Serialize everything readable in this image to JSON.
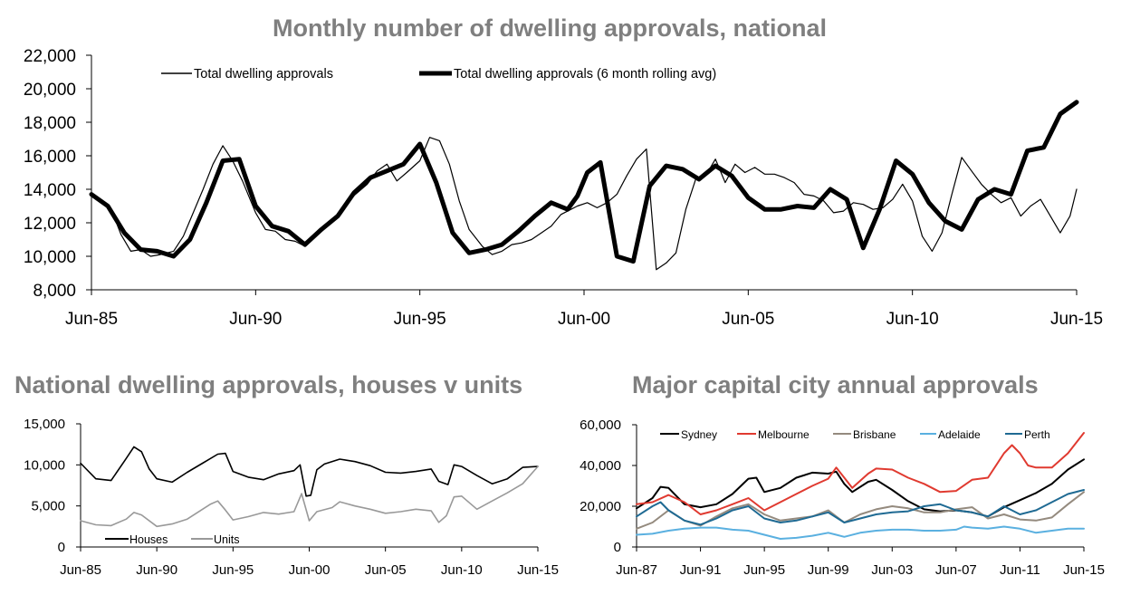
{
  "chart_data": [
    {
      "type": "line",
      "title": "Monthly number of dwelling approvals, national",
      "xlabel": "",
      "ylabel": "",
      "ylim": [
        8000,
        22000
      ],
      "y_ticks": [
        "8,000",
        "10,000",
        "12,000",
        "14,000",
        "16,000",
        "18,000",
        "20,000",
        "22,000"
      ],
      "x_ticks": [
        "Jun-85",
        "Jun-90",
        "Jun-95",
        "Jun-00",
        "Jun-05",
        "Jun-10",
        "Jun-15"
      ],
      "xlim": [
        1985.5,
        2015.5
      ],
      "legend": "top-left",
      "grid": false,
      "series": [
        {
          "name": "Total dwelling approvals",
          "color": "#000000",
          "style": "thin",
          "x": [
            1985.5,
            1985.8,
            1986.1,
            1986.4,
            1986.7,
            1987.0,
            1987.3,
            1987.6,
            1988.0,
            1988.3,
            1988.6,
            1988.9,
            1989.2,
            1989.5,
            1989.8,
            1990.1,
            1990.5,
            1990.8,
            1991.1,
            1991.4,
            1991.7,
            1992.0,
            1992.4,
            1992.7,
            1993.0,
            1993.3,
            1993.6,
            1993.9,
            1994.2,
            1994.5,
            1994.8,
            1995.1,
            1995.5,
            1995.8,
            1996.1,
            1996.4,
            1996.7,
            1997.0,
            1997.4,
            1997.7,
            1998.0,
            1998.3,
            1998.6,
            1998.9,
            1999.2,
            1999.5,
            1999.8,
            2000.1,
            2000.3,
            2000.6,
            2000.9,
            2001.2,
            2001.5,
            2001.8,
            2002.1,
            2002.4,
            2002.7,
            2003.0,
            2003.3,
            2003.6,
            2003.9,
            2004.2,
            2004.5,
            2004.8,
            2005.1,
            2005.4,
            2005.7,
            2006.0,
            2006.3,
            2006.6,
            2006.9,
            2007.2,
            2007.5,
            2007.8,
            2008.1,
            2008.4,
            2008.7,
            2009.0,
            2009.3,
            2009.6,
            2009.9,
            2010.2,
            2010.5,
            2010.8,
            2011.1,
            2011.4,
            2011.7,
            2012.0,
            2012.3,
            2012.6,
            2012.9,
            2013.2,
            2013.5,
            2013.8,
            2014.1,
            2014.4,
            2014.7,
            2015.0,
            2015.3,
            2015.5
          ],
          "values": [
            13700,
            13200,
            12800,
            11300,
            10300,
            10400,
            10000,
            10100,
            10300,
            11200,
            12600,
            14000,
            15500,
            16600,
            15700,
            14500,
            12600,
            11600,
            11500,
            11000,
            10900,
            10600,
            11300,
            12000,
            12300,
            13300,
            13800,
            14300,
            15100,
            15500,
            14500,
            15000,
            15700,
            17100,
            16900,
            15500,
            13300,
            11600,
            10600,
            10100,
            10300,
            10700,
            10800,
            11000,
            11400,
            11800,
            12500,
            12800,
            13000,
            13200,
            12900,
            13200,
            13700,
            14800,
            15800,
            16400,
            9200,
            9600,
            10200,
            12800,
            14600,
            14800,
            15800,
            14400,
            15500,
            15000,
            15300,
            14900,
            14900,
            14700,
            14400,
            13700,
            13600,
            13300,
            12600,
            12700,
            13200,
            13100,
            12800,
            12900,
            13400,
            14300,
            13300,
            11200,
            10300,
            11400,
            13700,
            15900,
            15100,
            14300,
            13700,
            13200,
            13500,
            12400,
            13000,
            13400,
            12400,
            11400,
            12400,
            14000
          ]
        },
        {
          "name": "Total dwelling approvals (6 month rolling avg)",
          "color": "#000000",
          "style": "thick",
          "x": [
            1985.5,
            1986.0,
            1986.5,
            1987.0,
            1987.5,
            1988.0,
            1988.5,
            1989.0,
            1989.5,
            1990.0,
            1990.5,
            1991.0,
            1991.5,
            1992.0,
            1992.5,
            1993.0,
            1993.5,
            1994.0,
            1994.5,
            1995.0,
            1995.5,
            1996.0,
            1996.5,
            1997.0,
            1997.5,
            1998.0,
            1998.5,
            1999.0,
            1999.5,
            2000.0,
            2000.3,
            2000.6,
            2001.0,
            2001.5,
            2002.0,
            2002.5,
            2003.0,
            2003.5,
            2004.0,
            2004.5,
            2005.0,
            2005.5,
            2006.0,
            2006.5,
            2007.0,
            2007.5,
            2008.0,
            2008.5,
            2009.0,
            2009.5,
            2010.0,
            2010.5,
            2011.0,
            2011.5,
            2012.0,
            2012.5,
            2013.0,
            2013.5,
            2014.0,
            2014.5,
            2015.0,
            2015.5
          ],
          "values": [
            13700,
            13000,
            11400,
            10400,
            10300,
            10000,
            11000,
            13200,
            15700,
            15800,
            13000,
            11800,
            11500,
            10700,
            11600,
            12400,
            13800,
            14700,
            15100,
            15500,
            16700,
            14400,
            11400,
            10200,
            10400,
            10700,
            11500,
            12400,
            13200,
            12800,
            13600,
            15000,
            15600,
            10000,
            9700,
            14200,
            15400,
            15200,
            14600,
            15400,
            14800,
            13500,
            12800,
            12800,
            13000,
            12900,
            14000,
            13400,
            10500,
            12800,
            15700,
            14900,
            13200,
            12100,
            11600,
            13400,
            14000,
            13700,
            16300,
            16500,
            18500,
            19200
          ]
        }
      ]
    },
    {
      "type": "line",
      "title": "National dwelling approvals, houses v units",
      "xlabel": "",
      "ylabel": "",
      "ylim": [
        0,
        15000
      ],
      "y_ticks": [
        "0",
        "5,000",
        "10,000",
        "15,000"
      ],
      "x_ticks": [
        "Jun-85",
        "Jun-90",
        "Jun-95",
        "Jun-00",
        "Jun-05",
        "Jun-10",
        "Jun-15"
      ],
      "xlim": [
        1985.5,
        2015.5
      ],
      "legend": "bottom-left",
      "grid": false,
      "series": [
        {
          "name": "Houses",
          "color": "#000000",
          "x": [
            1985.5,
            1986.5,
            1987.5,
            1988.5,
            1989.0,
            1989.5,
            1990.0,
            1990.5,
            1991.5,
            1992.5,
            1993.5,
            1994.5,
            1995.0,
            1995.5,
            1996.5,
            1997.5,
            1998.5,
            1999.5,
            1999.9,
            2000.3,
            2000.6,
            2001.0,
            2001.5,
            2002.5,
            2003.5,
            2004.5,
            2005.5,
            2006.5,
            2007.5,
            2008.5,
            2009.0,
            2009.6,
            2010.0,
            2010.5,
            2011.5,
            2012.5,
            2013.5,
            2014.5,
            2015.5
          ],
          "values": [
            10200,
            8300,
            8100,
            10800,
            12200,
            11600,
            9500,
            8300,
            7900,
            9100,
            10200,
            11300,
            11400,
            9200,
            8500,
            8200,
            8900,
            9300,
            10000,
            6200,
            6300,
            9400,
            10100,
            10700,
            10400,
            9900,
            9100,
            9000,
            9200,
            9500,
            8000,
            7600,
            10000,
            9800,
            8700,
            7700,
            8300,
            9700,
            9800
          ]
        },
        {
          "name": "Units",
          "color": "#999999",
          "x": [
            1985.5,
            1986.5,
            1987.5,
            1988.5,
            1989.0,
            1989.5,
            1990.5,
            1991.5,
            1992.5,
            1993.5,
            1994.0,
            1994.5,
            1995.0,
            1995.5,
            1996.5,
            1997.5,
            1998.5,
            1999.5,
            2000.0,
            2000.5,
            2001.0,
            2002.0,
            2002.5,
            2003.5,
            2004.5,
            2005.5,
            2006.5,
            2007.5,
            2008.5,
            2009.0,
            2009.5,
            2010.0,
            2010.5,
            2011.5,
            2012.5,
            2013.5,
            2014.5,
            2015.5
          ],
          "values": [
            3200,
            2700,
            2600,
            3400,
            4200,
            3900,
            2500,
            2800,
            3400,
            4600,
            5200,
            5600,
            4500,
            3300,
            3700,
            4200,
            4000,
            4300,
            6500,
            3200,
            4300,
            4800,
            5500,
            5000,
            4600,
            4100,
            4300,
            4600,
            4400,
            3000,
            3800,
            6100,
            6200,
            4600,
            5600,
            6600,
            7700,
            9800
          ]
        }
      ]
    },
    {
      "type": "line",
      "title": "Major capital city annual approvals",
      "xlabel": "",
      "ylabel": "",
      "ylim": [
        0,
        60000
      ],
      "y_ticks": [
        "0",
        "20,000",
        "40,000",
        "60,000"
      ],
      "x_ticks": [
        "Jun-87",
        "Jun-91",
        "Jun-95",
        "Jun-99",
        "Jun-03",
        "Jun-07",
        "Jun-11",
        "Jun-15"
      ],
      "xlim": [
        1987.5,
        2015.5
      ],
      "legend": "top",
      "grid": false,
      "series": [
        {
          "name": "Sydney",
          "color": "#000000",
          "x": [
            1987.5,
            1988.5,
            1989.0,
            1989.5,
            1990.5,
            1991.5,
            1992.5,
            1993.5,
            1994.5,
            1995.0,
            1995.5,
            1996.5,
            1997.5,
            1998.5,
            1999.5,
            2000.0,
            2000.5,
            2001.0,
            2002.0,
            2002.5,
            2003.5,
            2004.5,
            2005.5,
            2006.5,
            2007.5,
            2008.5,
            2009.5,
            2010.5,
            2011.5,
            2012.5,
            2013.5,
            2014.5,
            2015.5
          ],
          "values": [
            19000,
            24000,
            29500,
            29000,
            21000,
            19500,
            21000,
            26000,
            33500,
            34000,
            27000,
            29000,
            34000,
            36500,
            36000,
            37000,
            31000,
            27000,
            32000,
            33000,
            28000,
            22500,
            18500,
            17500,
            18000,
            17000,
            15000,
            19500,
            23000,
            26500,
            31000,
            38000,
            43000
          ]
        },
        {
          "name": "Melbourne",
          "color": "#e03a30",
          "x": [
            1987.5,
            1988.5,
            1989.5,
            1990.5,
            1991.5,
            1992.5,
            1993.5,
            1994.5,
            1995.5,
            1996.5,
            1997.5,
            1998.5,
            1999.5,
            2000.0,
            2000.5,
            2001.0,
            2002.0,
            2002.5,
            2003.5,
            2004.5,
            2005.5,
            2006.5,
            2007.5,
            2008.5,
            2009.5,
            2010.5,
            2011.0,
            2011.5,
            2012.0,
            2012.5,
            2013.5,
            2014.5,
            2015.5
          ],
          "values": [
            21000,
            22000,
            25500,
            22000,
            16000,
            18000,
            21000,
            24000,
            18000,
            22000,
            26000,
            30000,
            33500,
            39000,
            34000,
            29000,
            36000,
            38500,
            38000,
            34000,
            31000,
            27000,
            27500,
            33000,
            34000,
            46000,
            50000,
            46000,
            40000,
            39000,
            39000,
            46000,
            56000
          ]
        },
        {
          "name": "Brisbane",
          "color": "#948a7e",
          "x": [
            1987.5,
            1988.5,
            1989.5,
            1990.5,
            1991.5,
            1992.5,
            1993.5,
            1994.5,
            1995.5,
            1996.5,
            1997.5,
            1998.5,
            1999.5,
            2000.5,
            2001.5,
            2002.5,
            2003.5,
            2004.5,
            2005.5,
            2006.5,
            2007.5,
            2008.5,
            2009.5,
            2010.5,
            2011.5,
            2012.5,
            2013.5,
            2014.5,
            2015.5
          ],
          "values": [
            9000,
            12000,
            18000,
            13000,
            10500,
            15000,
            19000,
            21000,
            16000,
            13000,
            14000,
            15000,
            18000,
            12000,
            16000,
            18500,
            20000,
            19000,
            17000,
            17000,
            18500,
            19500,
            14000,
            16000,
            13500,
            13000,
            14500,
            21000,
            27000
          ]
        },
        {
          "name": "Adelaide",
          "color": "#5ab0e0",
          "x": [
            1987.5,
            1988.5,
            1989.5,
            1990.5,
            1991.5,
            1992.5,
            1993.5,
            1994.5,
            1995.5,
            1996.5,
            1997.5,
            1998.5,
            1999.5,
            2000.0,
            2000.5,
            2001.5,
            2002.5,
            2003.5,
            2004.5,
            2005.5,
            2006.5,
            2007.5,
            2008.0,
            2008.5,
            2009.5,
            2010.5,
            2011.5,
            2012.5,
            2013.5,
            2014.5,
            2015.5
          ],
          "values": [
            6000,
            6500,
            8000,
            9000,
            9500,
            9500,
            8500,
            8000,
            6000,
            4000,
            4500,
            5500,
            7000,
            6000,
            5000,
            7000,
            8000,
            8500,
            8500,
            8000,
            8000,
            8500,
            10000,
            9500,
            9000,
            10000,
            9000,
            7000,
            8000,
            9000,
            9000
          ]
        },
        {
          "name": "Perth",
          "color": "#1f6a93",
          "x": [
            1987.5,
            1988.5,
            1989.0,
            1989.5,
            1990.5,
            1991.5,
            1992.5,
            1993.5,
            1994.5,
            1995.5,
            1996.5,
            1997.5,
            1998.5,
            1999.5,
            2000.5,
            2001.5,
            2002.5,
            2003.5,
            2004.5,
            2005.5,
            2006.5,
            2007.5,
            2008.5,
            2009.5,
            2010.5,
            2011.5,
            2012.5,
            2013.5,
            2014.5,
            2015.5
          ],
          "values": [
            15000,
            20000,
            22000,
            18000,
            13000,
            11000,
            14000,
            18000,
            20000,
            14000,
            12000,
            13000,
            15000,
            17000,
            12000,
            14000,
            16000,
            17000,
            17500,
            20000,
            21000,
            18000,
            17000,
            15000,
            20000,
            16000,
            18000,
            22000,
            26000,
            28000
          ]
        }
      ]
    }
  ]
}
